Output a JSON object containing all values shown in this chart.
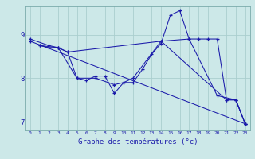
{
  "xlabel": "Graphe des températures (°c)",
  "ylabel": "",
  "background_color": "#cce8e8",
  "line_color": "#1a1aaa",
  "grid_color": "#aacece",
  "xlim": [
    -0.5,
    23.5
  ],
  "ylim": [
    6.8,
    9.65
  ],
  "xticks": [
    0,
    1,
    2,
    3,
    4,
    5,
    6,
    7,
    8,
    9,
    10,
    11,
    12,
    13,
    14,
    15,
    16,
    17,
    18,
    19,
    20,
    21,
    22,
    23
  ],
  "yticks": [
    7,
    8,
    9
  ],
  "lines": [
    {
      "x": [
        0,
        2,
        3,
        4,
        5,
        6,
        7,
        8,
        9,
        10,
        11,
        12,
        13,
        14,
        15,
        16,
        17,
        18,
        19,
        20,
        21,
        22,
        23
      ],
      "y": [
        8.9,
        8.75,
        8.7,
        8.6,
        8.0,
        7.95,
        8.05,
        8.05,
        7.65,
        7.9,
        7.9,
        8.2,
        8.55,
        8.8,
        9.45,
        9.55,
        8.9,
        8.9,
        8.9,
        8.9,
        7.5,
        7.5,
        6.95
      ]
    },
    {
      "x": [
        1,
        2,
        3,
        4,
        14,
        21,
        22,
        23
      ],
      "y": [
        8.75,
        8.7,
        8.7,
        8.6,
        8.85,
        7.5,
        7.5,
        6.95
      ]
    },
    {
      "x": [
        1,
        3,
        5,
        7,
        9,
        10,
        11,
        14,
        17,
        20,
        22,
        23
      ],
      "y": [
        8.75,
        8.7,
        8.0,
        8.0,
        7.85,
        7.9,
        8.0,
        8.85,
        8.9,
        7.6,
        7.5,
        6.95
      ]
    },
    {
      "x": [
        0,
        23
      ],
      "y": [
        8.85,
        6.95
      ]
    }
  ]
}
